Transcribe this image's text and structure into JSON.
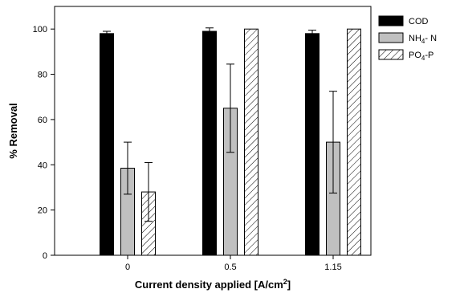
{
  "chart_data": {
    "type": "bar",
    "categories": [
      "0",
      "0.5",
      "1.15"
    ],
    "series": [
      {
        "name": "COD",
        "name_base": "COD",
        "name_sub": "",
        "name_tail": "",
        "values": [
          98,
          99,
          98
        ],
        "errors": [
          1,
          1.5,
          1.5
        ],
        "color": "#000000",
        "pattern": "solid"
      },
      {
        "name": "NH4- N",
        "name_base": "NH",
        "name_sub": "4",
        "name_tail": "- N",
        "values": [
          38.5,
          65,
          50
        ],
        "errors": [
          11.5,
          19.5,
          22.5
        ],
        "color": "#c0c0c0",
        "pattern": "solid"
      },
      {
        "name": "PO4-P",
        "name_base": "PO",
        "name_sub": "4",
        "name_tail": "-P",
        "values": [
          28,
          100,
          100
        ],
        "errors": [
          13,
          0,
          0
        ],
        "color": "#ffffff",
        "pattern": "hatch"
      }
    ],
    "xlabel": "Current density applied [A/cm",
    "xlabel_sup": "2",
    "xlabel_end": "]",
    "ylabel": "% Removal",
    "ylim": [
      0,
      110
    ],
    "yticks": [
      0,
      20,
      40,
      60,
      80,
      100
    ],
    "grid": false,
    "legend_position": "right"
  }
}
